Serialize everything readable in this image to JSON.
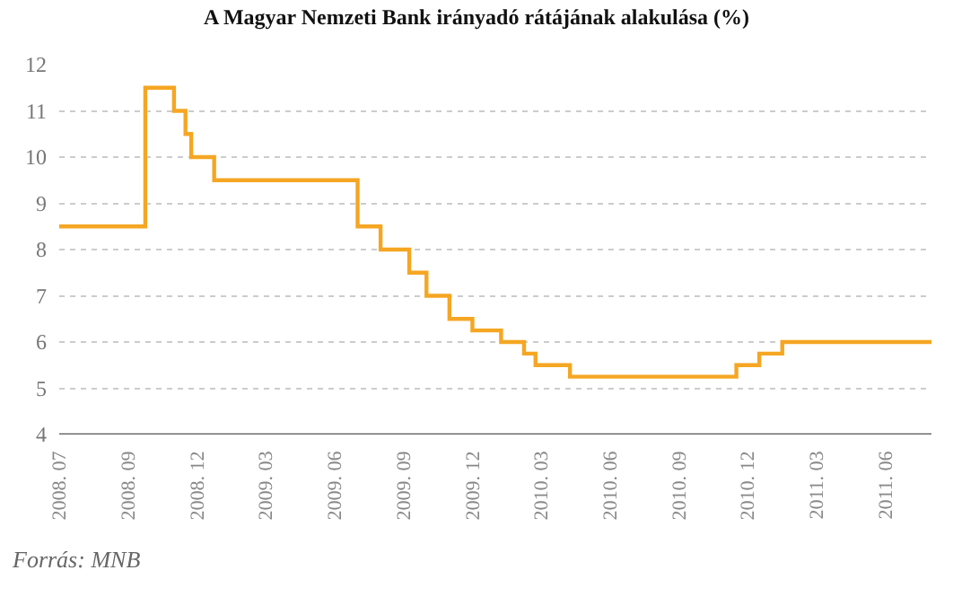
{
  "chart_data": {
    "type": "step",
    "title": "A Magyar Nemzeti Bank irányadó rátájának alakulása (%)",
    "annotations": [
      "Forrás: MNB"
    ],
    "categories": [
      "2008. 07",
      null,
      null,
      null,
      null,
      null,
      null,
      null,
      null,
      null,
      null,
      null,
      "2008. 09",
      null,
      null,
      null,
      null,
      null,
      null,
      null,
      null,
      null,
      null,
      null,
      "2008. 12",
      null,
      null,
      null,
      null,
      null,
      null,
      null,
      null,
      null,
      null,
      null,
      "2009. 03",
      null,
      null,
      null,
      null,
      null,
      null,
      null,
      null,
      null,
      null,
      null,
      "2009. 06",
      null,
      null,
      null,
      null,
      null,
      null,
      null,
      null,
      null,
      null,
      null,
      "2009. 09",
      null,
      null,
      null,
      null,
      null,
      null,
      null,
      null,
      null,
      null,
      null,
      "2009. 12",
      null,
      null,
      null,
      null,
      null,
      null,
      null,
      null,
      null,
      null,
      null,
      "2010. 03",
      null,
      null,
      null,
      null,
      null,
      null,
      null,
      null,
      null,
      null,
      null,
      "2010. 06",
      null,
      null,
      null,
      null,
      null,
      null,
      null,
      null,
      null,
      null,
      null,
      "2010. 09",
      null,
      null,
      null,
      null,
      null,
      null,
      null,
      null,
      null,
      null,
      null,
      "2010. 12",
      null,
      null,
      null,
      null,
      null,
      null,
      null,
      null,
      null,
      null,
      null,
      "2011. 03",
      null,
      null,
      null,
      null,
      null,
      null,
      null,
      null,
      null,
      null,
      null,
      "2011. 06",
      null,
      null,
      null,
      null,
      null,
      null,
      null,
      null
    ],
    "series": [
      {
        "color": "#f5a623",
        "values": [
          8.5,
          8.5,
          8.5,
          8.5,
          8.5,
          8.5,
          8.5,
          8.5,
          8.5,
          8.5,
          8.5,
          8.5,
          8.5,
          8.5,
          8.5,
          11.5,
          11.5,
          11.5,
          11.5,
          11.5,
          11,
          11,
          10.5,
          10,
          10,
          10,
          10,
          9.5,
          9.5,
          9.5,
          9.5,
          9.5,
          9.5,
          9.5,
          9.5,
          9.5,
          9.5,
          9.5,
          9.5,
          9.5,
          9.5,
          9.5,
          9.5,
          9.5,
          9.5,
          9.5,
          9.5,
          9.5,
          9.5,
          9.5,
          9.5,
          9.5,
          8.5,
          8.5,
          8.5,
          8.5,
          8,
          8,
          8,
          8,
          8,
          7.5,
          7.5,
          7.5,
          7,
          7,
          7,
          7,
          6.5,
          6.5,
          6.5,
          6.5,
          6.25,
          6.25,
          6.25,
          6.25,
          6.25,
          6,
          6,
          6,
          6,
          5.75,
          5.75,
          5.5,
          5.5,
          5.5,
          5.5,
          5.5,
          5.5,
          5.25,
          5.25,
          5.25,
          5.25,
          5.25,
          5.25,
          5.25,
          5.25,
          5.25,
          5.25,
          5.25,
          5.25,
          5.25,
          5.25,
          5.25,
          5.25,
          5.25,
          5.25,
          5.25,
          5.25,
          5.25,
          5.25,
          5.25,
          5.25,
          5.25,
          5.25,
          5.25,
          5.25,
          5.25,
          5.5,
          5.5,
          5.5,
          5.5,
          5.75,
          5.75,
          5.75,
          5.75,
          6,
          6,
          6,
          6,
          6,
          6,
          6,
          6,
          6,
          6,
          6,
          6,
          6,
          6,
          6,
          6,
          6,
          6,
          6,
          6,
          6,
          6,
          6,
          6,
          6,
          6,
          6
        ]
      }
    ],
    "ylim": [
      4,
      12
    ],
    "yticks": [
      4,
      5,
      6,
      7,
      8,
      9,
      10,
      11,
      12
    ],
    "grid": "y",
    "marker": "none",
    "line_style": "solid"
  }
}
